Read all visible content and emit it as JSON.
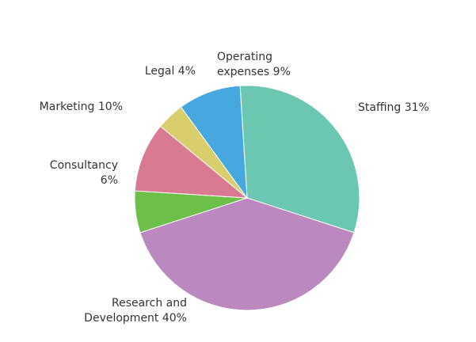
{
  "chart_data": {
    "type": "pie",
    "title": "",
    "start_angle_deg": -3.6,
    "slices": [
      {
        "label_lines": [
          "Staffing 31%"
        ],
        "value": 31,
        "color": "#6cc7b2"
      },
      {
        "label_lines": [
          "Research and",
          "Development 40%"
        ],
        "value": 40,
        "color": "#bb88bf"
      },
      {
        "label_lines": [
          "Consultancy",
          "6%"
        ],
        "value": 6,
        "color": "#6cc04a"
      },
      {
        "label_lines": [
          "Marketing 10%"
        ],
        "value": 10,
        "color": "#d87a91"
      },
      {
        "label_lines": [
          "Legal 4%"
        ],
        "value": 4,
        "color": "#d8cf6c"
      },
      {
        "label_lines": [
          "Operating",
          "expenses 9%"
        ],
        "value": 9,
        "color": "#47a8df"
      }
    ]
  }
}
